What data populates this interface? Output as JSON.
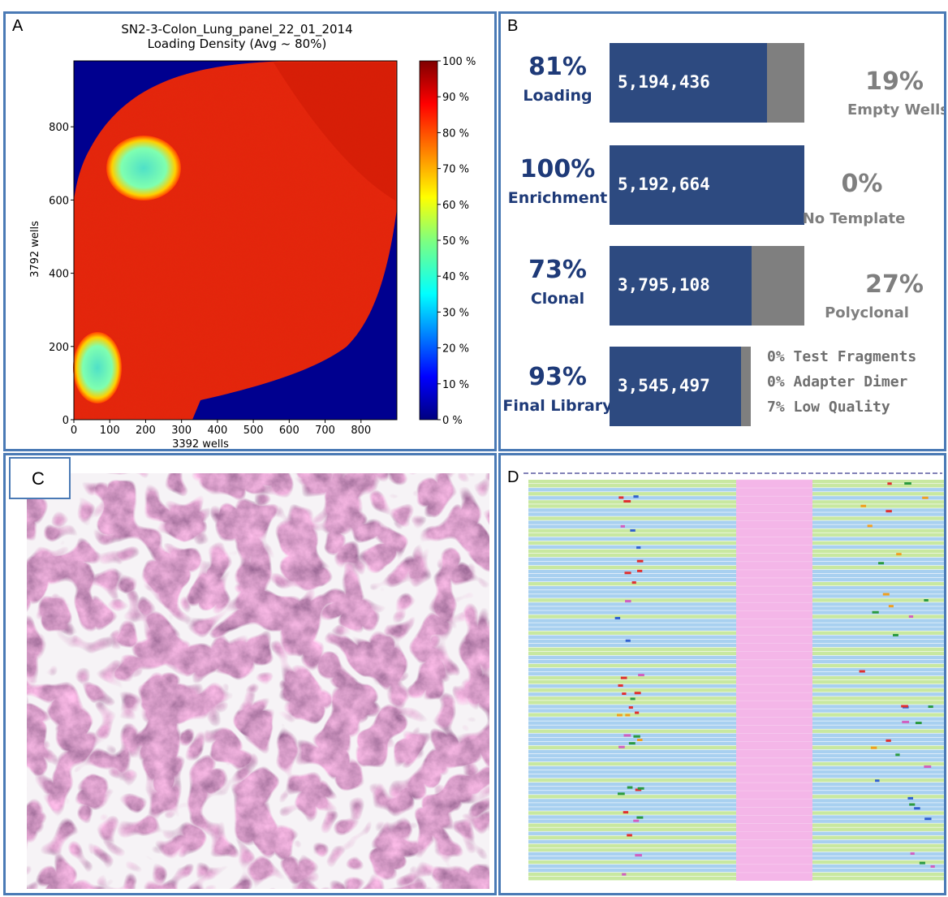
{
  "panel_a": {
    "label": "A",
    "title_line1": "SN2-3-Colon_Lung_panel_22_01_2014",
    "title_line2": "Loading Density (Avg ~ 80%)",
    "xlabel": "3392 wells",
    "ylabel": "3792 wells",
    "x_ticks": [
      "0",
      "100",
      "200",
      "300",
      "400",
      "500",
      "600",
      "700",
      "800"
    ],
    "y_ticks": [
      "0",
      "200",
      "400",
      "600",
      "800"
    ],
    "colorbar_ticks": [
      "100 %",
      "90 %",
      "80 %",
      "70 %",
      "60 %",
      "50 %",
      "40 %",
      "30 %",
      "20 %",
      "10 %",
      "0 %"
    ]
  },
  "panel_b": {
    "label": "B",
    "rows": [
      {
        "pct": "81%",
        "label": "Loading",
        "value": "5,194,436",
        "fraction": 0.81,
        "right_pct": "19%",
        "right_label": "Empty Wells"
      },
      {
        "pct": "100%",
        "label": "Enrichment",
        "value": "5,192,664",
        "fraction": 1.0,
        "right_pct": "0%",
        "right_label": "No Template"
      },
      {
        "pct": "73%",
        "label": "Clonal",
        "value": "3,795,108",
        "fraction": 0.73,
        "right_pct": "27%",
        "right_label": "Polyclonal"
      },
      {
        "pct": "93%",
        "label": "Final Library",
        "value": "3,545,497",
        "fraction": 0.93,
        "notes": [
          "0% Test Fragments",
          "0% Adapter Dimer",
          "7% Low Quality"
        ]
      }
    ]
  },
  "panel_c": {
    "label": "C"
  },
  "panel_d": {
    "label": "D"
  },
  "chart_data": [
    {
      "type": "heatmap",
      "title": "SN2-3-Colon_Lung_panel_22_01_2014\nLoading Density (Avg ~ 80%)",
      "xlabel": "3392 wells",
      "ylabel": "3792 wells",
      "xlim": [
        0,
        900
      ],
      "ylim": [
        0,
        980
      ],
      "colorbar_range": [
        0,
        100
      ],
      "colorbar_unit": "%"
    },
    {
      "type": "bar",
      "categories": [
        "Loading",
        "Enrichment",
        "Clonal",
        "Final Library"
      ],
      "values": [
        81,
        100,
        73,
        93
      ],
      "counts": [
        5194436,
        5192664,
        3795108,
        3545497
      ],
      "remainder": [
        {
          "name": "Empty Wells",
          "value": 19
        },
        {
          "name": "No Template",
          "value": 0
        },
        {
          "name": "Polyclonal",
          "value": 27
        },
        {
          "name": "Low Quality",
          "value": 7
        }
      ]
    }
  ]
}
